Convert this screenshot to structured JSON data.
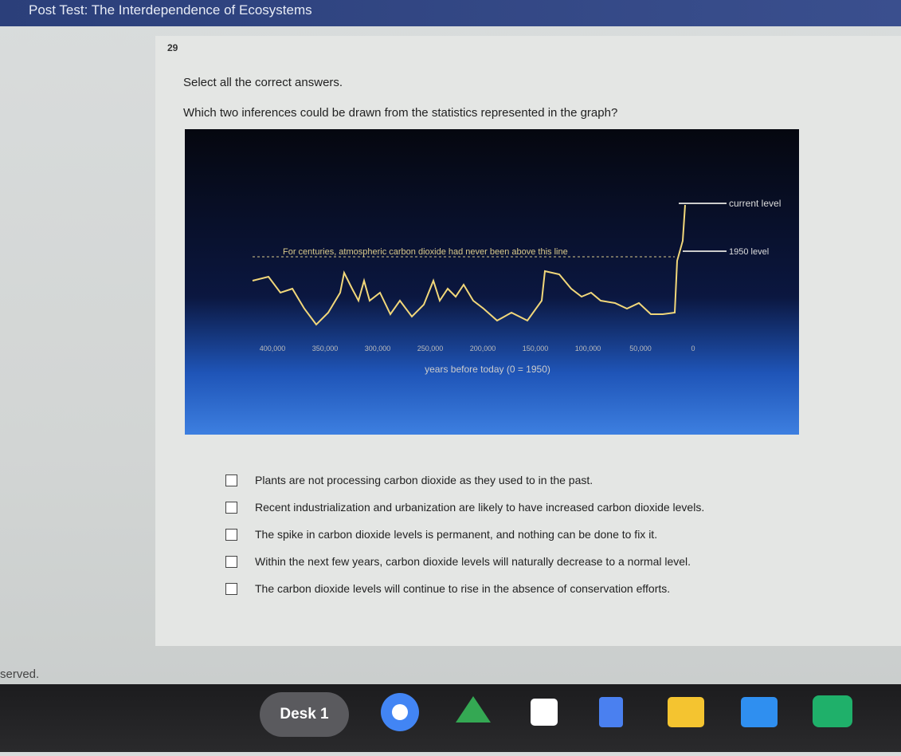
{
  "header": {
    "title": "Post Test: The Interdependence of Ecosystems"
  },
  "question": {
    "number": "29",
    "instruction": "Select all the correct answers.",
    "prompt": "Which two inferences could be drawn from the statistics represented in the graph?"
  },
  "graph": {
    "annotation": "For centuries, atmospheric carbon dioxide had never been above this line",
    "current_label": "current level",
    "level_1950_label": "1950 level",
    "x_label": "years before today (0 = 1950)",
    "x_ticks": [
      "400,000",
      "350,000",
      "300,000",
      "250,000",
      "200,000",
      "150,000",
      "100,000",
      "50,000",
      "0"
    ]
  },
  "options": [
    "Plants are not processing carbon dioxide as they used to in the past.",
    "Recent industrialization and urbanization are likely to have increased carbon dioxide levels.",
    "The spike in carbon dioxide levels is permanent, and nothing can be done to fix it.",
    "Within the next few years, carbon dioxide levels will naturally decrease to a normal level.",
    "The carbon dioxide levels will continue to rise in the absence of conservation efforts."
  ],
  "footer": {
    "text": "served."
  },
  "taskbar": {
    "desk": "Desk 1"
  }
}
